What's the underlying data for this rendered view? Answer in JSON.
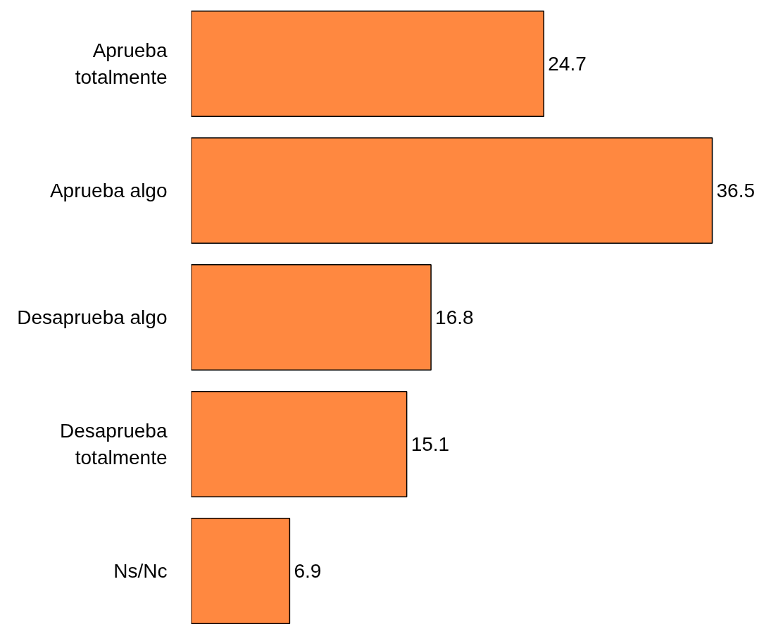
{
  "chart_data": {
    "type": "bar",
    "orientation": "horizontal",
    "categories": [
      "Aprueba totalmente",
      "Aprueba algo",
      "Desaprueba algo",
      "Desaprueba totalmente",
      "Ns/Nc"
    ],
    "values": [
      24.7,
      36.5,
      16.8,
      15.1,
      6.9
    ],
    "color": "#ff8840",
    "data_labels": true
  }
}
